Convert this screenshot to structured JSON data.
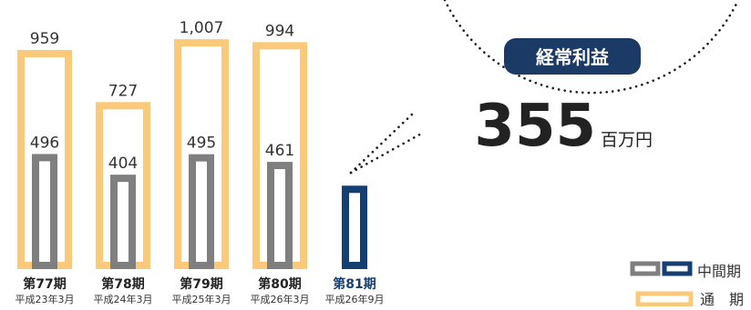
{
  "chart_data": {
    "type": "bar",
    "categories": [
      "第77期",
      "第78期",
      "第79期",
      "第80期",
      "第81期"
    ],
    "sublabels": [
      "平成23年3月",
      "平成24年3月",
      "平成25年3月",
      "平成26年3月",
      "平成26年9月"
    ],
    "series": [
      {
        "name": "通　期",
        "values": [
          959,
          727,
          1007,
          994,
          null
        ],
        "labels": [
          "959",
          "727",
          "1,007",
          "994",
          ""
        ]
      },
      {
        "name": "中間期",
        "values": [
          496,
          404,
          495,
          461,
          355
        ],
        "labels": [
          "496",
          "404",
          "495",
          "461",
          ""
        ]
      }
    ],
    "ylim": [
      0,
      1060
    ],
    "colors": {
      "annual": "#fac97a",
      "interim": "#7f7f7f",
      "current": "#153e73",
      "badge": "#1b3a66",
      "dots": "#1e1e1e",
      "text": "#333333"
    }
  },
  "callout": {
    "badge": "経常利益",
    "value": "355",
    "unit": "百万円"
  },
  "legend": {
    "interim_label": "中間期",
    "annual_label": "通　期"
  }
}
